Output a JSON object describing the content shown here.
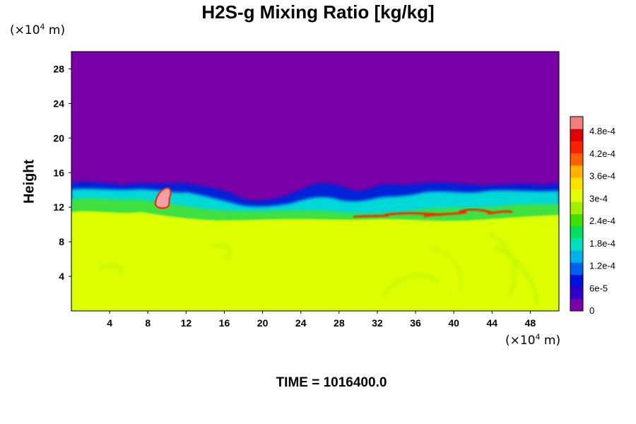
{
  "chart_data": {
    "type": "heatmap",
    "title": "H2S-g Mixing Ratio [kg/kg]",
    "ylabel": "Height",
    "xlabel": "",
    "x_unit_label": [
      "(×10",
      "4",
      " m)"
    ],
    "y_unit_label": [
      "(×10",
      "4",
      " m)"
    ],
    "x_ticks": [
      4,
      8,
      12,
      16,
      20,
      24,
      28,
      32,
      36,
      40,
      44,
      48
    ],
    "y_ticks": [
      4,
      8,
      12,
      16,
      20,
      24,
      28
    ],
    "xlim": [
      0,
      51
    ],
    "ylim": [
      0,
      30
    ],
    "colorbar": {
      "min": 0,
      "max": 0.00052,
      "labels": [
        {
          "text": "4.8e-4",
          "value": 0.00048
        },
        {
          "text": "4.2e-4",
          "value": 0.00042
        },
        {
          "text": "3.6e-4",
          "value": 0.00036
        },
        {
          "text": "3e-4",
          "value": 0.0003
        },
        {
          "text": "2.4e-4",
          "value": 0.00024
        },
        {
          "text": "1.8e-4",
          "value": 0.00018
        },
        {
          "text": "1.2e-4",
          "value": 0.00012
        },
        {
          "text": "6e-5",
          "value": 6e-05
        },
        {
          "text": "0",
          "value": 0
        }
      ],
      "colors": [
        "#7a00a8",
        "#3000c8",
        "#0010e0",
        "#0060f0",
        "#00b0e8",
        "#00e0c0",
        "#00e060",
        "#40e000",
        "#a0f000",
        "#e0ff00",
        "#ffe000",
        "#ffb000",
        "#ff6000",
        "#ff2000",
        "#e00000",
        "#f08080"
      ]
    },
    "regions": [
      {
        "name": "upper",
        "description_value": 0,
        "y_range": [
          12,
          30
        ]
      },
      {
        "name": "lower",
        "description_value": 0.00037,
        "y_range": [
          0,
          11
        ]
      }
    ],
    "colors": {
      "upper": "#7a00a8",
      "lower": "#ddff00",
      "transition_blue": "#0020d8",
      "transition_cyan": "#00d8d8",
      "transition_green": "#40e040",
      "hot_red": "#ff2000",
      "hot_pink": "#f4a0a0"
    }
  },
  "footer": {
    "time_label": "TIME = 1016400.0"
  }
}
